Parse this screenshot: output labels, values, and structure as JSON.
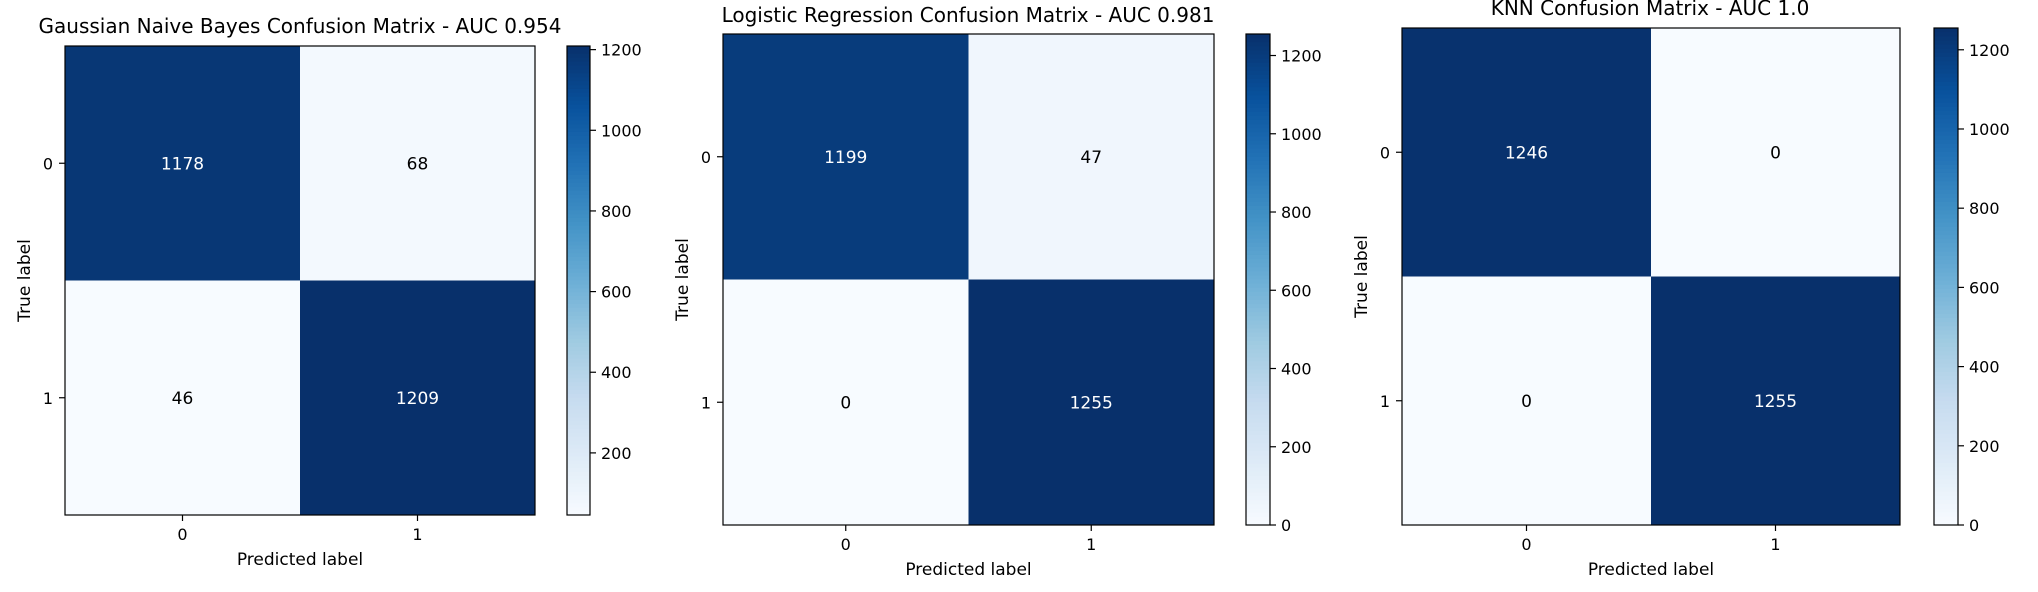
{
  "chart_data": [
    {
      "type": "heatmap",
      "title": "Gaussian Naive Bayes Confusion Matrix - AUC 0.954",
      "xlabel": "Predicted label",
      "ylabel": "True label",
      "x_tick_labels": [
        "0",
        "1"
      ],
      "y_tick_labels": [
        "0",
        "1"
      ],
      "matrix": [
        [
          1178,
          68
        ],
        [
          46,
          1209
        ]
      ],
      "colormap": "Blues",
      "colorbar": {
        "range": [
          46,
          1209
        ],
        "ticks": [
          200,
          400,
          600,
          800,
          1000,
          1200
        ]
      }
    },
    {
      "type": "heatmap",
      "title": "Logistic Regression Confusion Matrix - AUC 0.981",
      "xlabel": "Predicted label",
      "ylabel": "True label",
      "x_tick_labels": [
        "0",
        "1"
      ],
      "y_tick_labels": [
        "0",
        "1"
      ],
      "matrix": [
        [
          1199,
          47
        ],
        [
          0,
          1255
        ]
      ],
      "colormap": "Blues",
      "colorbar": {
        "range": [
          0,
          1255
        ],
        "ticks": [
          0,
          200,
          400,
          600,
          800,
          1000,
          1200
        ]
      }
    },
    {
      "type": "heatmap",
      "title": "KNN Confusion Matrix - AUC 1.0",
      "xlabel": "Predicted label",
      "ylabel": "True label",
      "x_tick_labels": [
        "0",
        "1"
      ],
      "y_tick_labels": [
        "0",
        "1"
      ],
      "matrix": [
        [
          1246,
          0
        ],
        [
          0,
          1255
        ]
      ],
      "colormap": "Blues",
      "colorbar": {
        "range": [
          0,
          1255
        ],
        "ticks": [
          0,
          200,
          400,
          600,
          800,
          1000,
          1200
        ]
      }
    }
  ]
}
